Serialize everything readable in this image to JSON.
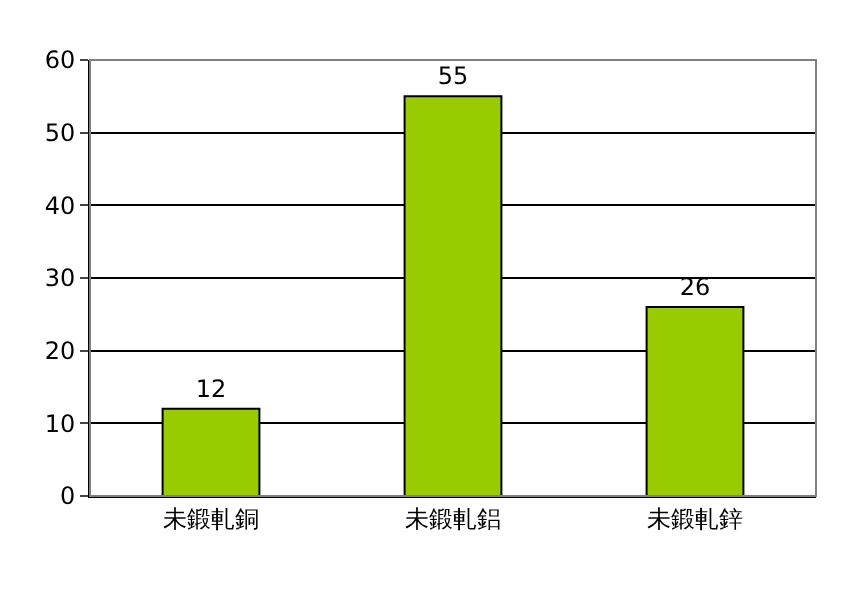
{
  "chart_data": {
    "type": "bar",
    "categories": [
      "未鍛軋銅",
      "未鍛軋鋁",
      "未鍛軋鋅"
    ],
    "values": [
      12,
      55,
      26
    ],
    "color": "#99cc00",
    "ylim": [
      0,
      60
    ],
    "yticks": [
      0,
      10,
      20,
      30,
      40,
      50,
      60
    ],
    "grid": "y",
    "data_labels": true
  }
}
